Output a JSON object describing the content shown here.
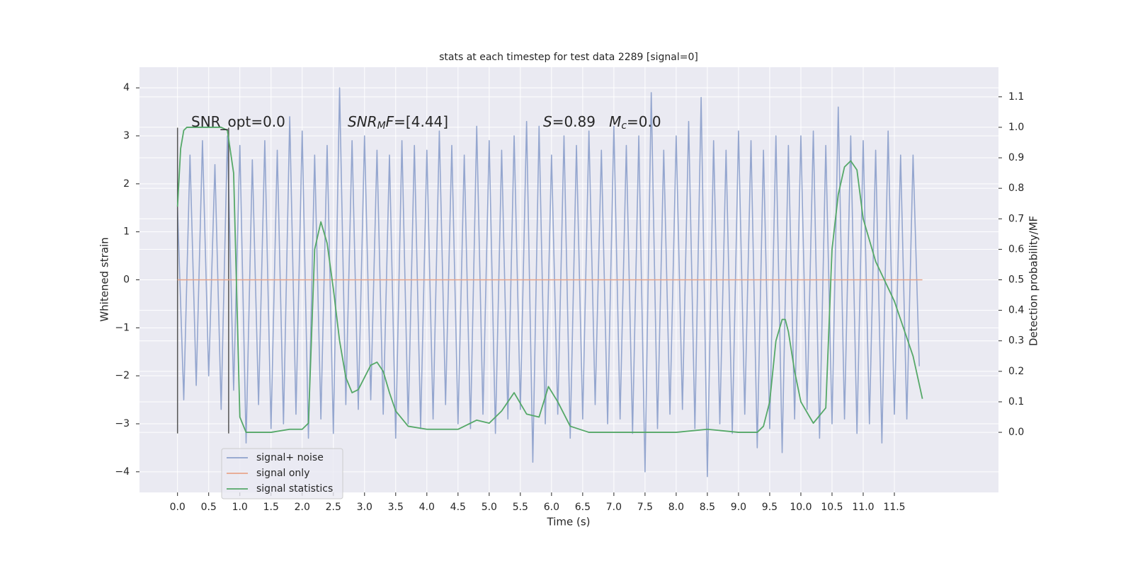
{
  "chart_data": {
    "type": "line",
    "title": "stats at each timestep for test data 2289 [signal=0]",
    "x_label": "Time (s)",
    "y_label": "Whitened strain",
    "y2_label": "Detection probability/MF",
    "xlim": [
      -0.61,
      13.17
    ],
    "ylim": [
      -4.43,
      4.43
    ],
    "y2lim": [
      -0.197,
      1.197
    ],
    "xticks": [
      {
        "value": 0,
        "label": "0.0"
      },
      0.5,
      {
        "value": 1,
        "label": "1.0"
      },
      1.5,
      {
        "value": 2,
        "label": "2.0"
      },
      2.5,
      {
        "value": 3,
        "label": "3.0"
      },
      3.5,
      {
        "value": 4,
        "label": "4.0"
      },
      4.5,
      {
        "value": 5,
        "label": "5.0"
      },
      5.5,
      {
        "value": 6,
        "label": "6.0"
      },
      6.5,
      {
        "value": 7,
        "label": "7.0"
      },
      7.5,
      {
        "value": 8,
        "label": "8.0"
      },
      8.5,
      {
        "value": 9,
        "label": "9.0"
      },
      9.5,
      {
        "value": 10,
        "label": "10.0"
      },
      10.5,
      {
        "value": 11,
        "label": "11.0"
      },
      11.5
    ],
    "yticks": [
      {
        "value": -4,
        "label": "−4"
      },
      {
        "value": -3,
        "label": "−3"
      },
      {
        "value": -2,
        "label": "−2"
      },
      {
        "value": -1,
        "label": "−1"
      },
      0,
      1,
      2,
      3,
      4
    ],
    "y2ticks": [
      {
        "value": 0,
        "label": "0.0"
      },
      0.1,
      0.2,
      0.3,
      0.4,
      0.5,
      0.6,
      0.7,
      0.8,
      0.9,
      {
        "value": 1,
        "label": "1.0"
      },
      1.1
    ],
    "grid": true,
    "legend": "lower left",
    "series": [
      {
        "name": "signal+ noise",
        "color": "#8fa2cc",
        "x": [
          0,
          0.1,
          0.2,
          0.3,
          0.4,
          0.5,
          0.6,
          0.7,
          0.8,
          0.9,
          1,
          1.1,
          1.2,
          1.3,
          1.4,
          1.5,
          1.6,
          1.7,
          1.8,
          1.9,
          2,
          2.1,
          2.2,
          2.3,
          2.4,
          2.5,
          2.6,
          2.7,
          2.8,
          2.9,
          3,
          3.1,
          3.2,
          3.3,
          3.4,
          3.5,
          3.6,
          3.7,
          3.8,
          3.9,
          4,
          4.1,
          4.2,
          4.3,
          4.4,
          4.5,
          4.6,
          4.7,
          4.8,
          4.9,
          5,
          5.1,
          5.2,
          5.3,
          5.4,
          5.5,
          5.6,
          5.7,
          5.8,
          5.9,
          6,
          6.1,
          6.2,
          6.3,
          6.4,
          6.5,
          6.6,
          6.7,
          6.8,
          6.9,
          7,
          7.1,
          7.2,
          7.3,
          7.4,
          7.5,
          7.6,
          7.7,
          7.8,
          7.9,
          8,
          8.1,
          8.2,
          8.3,
          8.4,
          8.5,
          8.6,
          8.7,
          8.8,
          8.9,
          9,
          9.1,
          9.2,
          9.3,
          9.4,
          9.5,
          9.6,
          9.7,
          9.8,
          9.9,
          10,
          10.1,
          10.2,
          10.3,
          10.4,
          10.5,
          10.6,
          10.7,
          10.8,
          10.9,
          11,
          11.1,
          11.2,
          11.3,
          11.4,
          11.5,
          11.6,
          11.7,
          11.8,
          11.9
        ],
        "values": [
          1.5,
          -2.5,
          2.6,
          -2.2,
          2.9,
          -2.0,
          2.4,
          -2.7,
          3.0,
          -2.3,
          2.8,
          -3.4,
          2.5,
          -2.6,
          2.9,
          -3.1,
          2.7,
          -3.0,
          3.4,
          -2.8,
          3.1,
          -3.3,
          2.6,
          -2.9,
          2.8,
          -3.2,
          4.0,
          -2.6,
          2.9,
          -2.7,
          3.0,
          -2.5,
          2.7,
          -2.8,
          2.6,
          -3.3,
          2.9,
          -3.0,
          2.8,
          -3.1,
          2.7,
          -2.9,
          3.1,
          -2.6,
          2.8,
          -3.0,
          2.6,
          -3.1,
          3.2,
          -2.8,
          2.9,
          -3.2,
          2.7,
          -2.9,
          3.0,
          -2.7,
          3.3,
          -3.8,
          3.2,
          -3.0,
          2.6,
          -2.8,
          3.0,
          -3.3,
          2.8,
          -2.9,
          3.1,
          -2.6,
          2.7,
          -3.0,
          3.2,
          -2.9,
          2.8,
          -3.2,
          3.0,
          -4.0,
          3.9,
          -3.1,
          2.7,
          -2.8,
          3.0,
          -2.7,
          3.3,
          -3.1,
          3.8,
          -4.1,
          2.9,
          -3.0,
          2.7,
          -3.2,
          3.1,
          -2.8,
          2.9,
          -3.5,
          2.7,
          -3.1,
          3.0,
          -3.6,
          2.8,
          -2.9,
          3.0,
          -2.7,
          3.1,
          -3.3,
          2.8,
          -3.0,
          3.6,
          -2.9,
          3.0,
          -3.2,
          2.9,
          -3.0,
          2.7,
          -3.4,
          3.1,
          -2.8,
          2.6,
          -2.9,
          2.6,
          -1.8
        ]
      },
      {
        "name": "signal only",
        "color": "#e8a58b",
        "x": [
          0,
          11.95
        ],
        "values": [
          0,
          0
        ]
      },
      {
        "name": "signal statistics",
        "color": "#55a868",
        "axis": "y2",
        "x": [
          0,
          0.05,
          0.1,
          0.15,
          0.3,
          0.5,
          0.7,
          0.8,
          0.9,
          1.0,
          1.1,
          1.2,
          1.5,
          1.8,
          2.0,
          2.1,
          2.2,
          2.3,
          2.4,
          2.5,
          2.6,
          2.7,
          2.8,
          2.9,
          3.0,
          3.1,
          3.2,
          3.3,
          3.4,
          3.5,
          3.7,
          4.0,
          4.3,
          4.5,
          4.8,
          5.0,
          5.2,
          5.4,
          5.6,
          5.8,
          5.95,
          6.1,
          6.3,
          6.6,
          7.0,
          8.0,
          8.5,
          9.0,
          9.3,
          9.4,
          9.5,
          9.6,
          9.7,
          9.75,
          9.8,
          9.9,
          10.0,
          10.2,
          10.4,
          10.5,
          10.6,
          10.7,
          10.8,
          10.9,
          11.0,
          11.2,
          11.5,
          11.8,
          11.95
        ],
        "values": [
          0.74,
          0.93,
          0.99,
          1.0,
          1.0,
          1.0,
          1.0,
          0.99,
          0.85,
          0.05,
          0.0,
          0.0,
          0.0,
          0.01,
          0.01,
          0.03,
          0.6,
          0.69,
          0.62,
          0.47,
          0.3,
          0.18,
          0.13,
          0.14,
          0.18,
          0.22,
          0.23,
          0.2,
          0.13,
          0.07,
          0.02,
          0.01,
          0.01,
          0.01,
          0.04,
          0.03,
          0.07,
          0.13,
          0.06,
          0.05,
          0.15,
          0.1,
          0.02,
          0.0,
          0.0,
          0.0,
          0.01,
          0.0,
          0.0,
          0.02,
          0.1,
          0.3,
          0.37,
          0.37,
          0.33,
          0.2,
          0.1,
          0.03,
          0.08,
          0.6,
          0.78,
          0.87,
          0.89,
          0.86,
          0.7,
          0.56,
          0.43,
          0.25,
          0.11
        ]
      }
    ],
    "vlines": {
      "x": [
        0,
        0.82
      ],
      "ymin": -3.2,
      "ymax": 3.17,
      "color": "#555555"
    },
    "annotations": [
      [
        {
          "text": "SNR_opt=0.0",
          "style": "normal"
        }
      ],
      [
        {
          "text": "SNR",
          "style": "italic"
        },
        {
          "text": "M",
          "style": "italic-sub"
        },
        {
          "text": "F",
          "style": "italic"
        },
        {
          "text": "=[4.44]",
          "style": "normal"
        }
      ],
      [
        {
          "text": "S",
          "style": "italic"
        },
        {
          "text": "=0.89   ",
          "style": "normal"
        },
        {
          "text": "M",
          "style": "italic"
        },
        {
          "text": "c",
          "style": "italic-sub"
        },
        {
          "text": "=0.0",
          "style": "normal"
        }
      ]
    ]
  }
}
